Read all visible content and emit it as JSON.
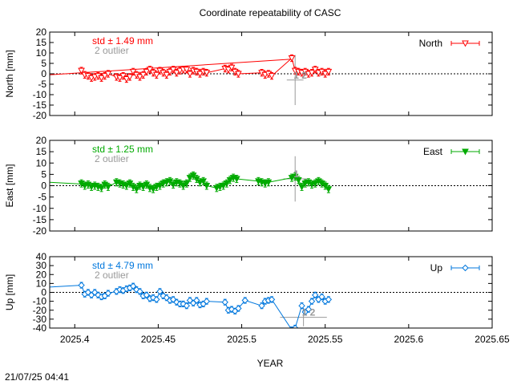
{
  "title": "Coordinate repeatability of CASC",
  "xlabel": "YEAR",
  "timestamp": "21/07/25 04:41",
  "x_ticks": [
    "2025.4",
    "2025.45",
    "2025.5",
    "2025.55",
    "2025.6",
    "2025.65"
  ],
  "chart_data": [
    {
      "type": "line",
      "component": "North",
      "ylabel": "North [mm]",
      "color": "#ff0000",
      "marker": "triangle-down-open",
      "legend": "North",
      "std_label": "std ± 1.49 mm",
      "outlier_label": "2 outlier",
      "outlier_marks": [
        "1",
        "2"
      ],
      "xlim": [
        2025.385,
        2025.65
      ],
      "ylim": [
        -20,
        20
      ],
      "y_ticks": [
        "20",
        "15",
        "10",
        "5",
        "0",
        "-5",
        "-10",
        "-15",
        "-20"
      ],
      "trend": [
        [
          2025.385,
          -0.5
        ],
        [
          2025.53,
          7
        ]
      ],
      "x": [
        2025.404,
        2025.406,
        2025.408,
        2025.41,
        2025.412,
        2025.414,
        2025.416,
        2025.418,
        2025.42,
        2025.425,
        2025.427,
        2025.429,
        2025.431,
        2025.433,
        2025.435,
        2025.437,
        2025.439,
        2025.441,
        2025.443,
        2025.445,
        2025.447,
        2025.449,
        2025.451,
        2025.453,
        2025.455,
        2025.457,
        2025.459,
        2025.461,
        2025.463,
        2025.465,
        2025.467,
        2025.469,
        2025.471,
        2025.473,
        2025.475,
        2025.477,
        2025.479,
        2025.49,
        2025.492,
        2025.494,
        2025.496,
        2025.498,
        2025.512,
        2025.514,
        2025.516,
        2025.518,
        2025.53,
        2025.532,
        2025.534,
        2025.536,
        2025.538,
        2025.54,
        2025.542,
        2025.544,
        2025.546,
        2025.548,
        2025.55,
        2025.552
      ],
      "y": [
        1.5,
        -0.5,
        -1.0,
        -2.0,
        -1.5,
        -1.0,
        -2.0,
        -1.0,
        0.0,
        -1.5,
        -2.0,
        -1.0,
        -2.5,
        -1.5,
        1.0,
        -0.5,
        -1.5,
        -0.5,
        1.0,
        2.0,
        0.5,
        -0.5,
        1.5,
        0.5,
        -0.5,
        1.0,
        2.0,
        0.5,
        1.5,
        2.0,
        2.0,
        0.0,
        1.5,
        1.0,
        0.0,
        1.0,
        0.5,
        2.5,
        2.0,
        3.0,
        1.0,
        0.0,
        0.5,
        -0.5,
        0.0,
        -1.0,
        7.5,
        1.5,
        1.0,
        0.5,
        1.0,
        0.0,
        0.5,
        2.0,
        0.5,
        1.0,
        0.0,
        1.0
      ],
      "outliers": [
        [
          2025.532,
          -3,
          12,
          5
        ]
      ]
    },
    {
      "type": "line",
      "component": "East",
      "ylabel": "East [mm]",
      "color": "#00aa00",
      "marker": "triangle-down-filled",
      "legend": "East",
      "std_label": "std ± 1.25 mm",
      "outlier_label": "2 outlier",
      "outlier_marks": [
        "1"
      ],
      "xlim": [
        2025.385,
        2025.65
      ],
      "ylim": [
        -20,
        20
      ],
      "y_ticks": [
        "20",
        "15",
        "10",
        "5",
        "0",
        "-5",
        "-10",
        "-15",
        "-20"
      ],
      "trend": [
        [
          2025.385,
          1.5
        ],
        [
          2025.41,
          0.5
        ]
      ],
      "x": [
        2025.404,
        2025.406,
        2025.408,
        2025.41,
        2025.412,
        2025.414,
        2025.416,
        2025.418,
        2025.42,
        2025.425,
        2025.427,
        2025.429,
        2025.431,
        2025.433,
        2025.435,
        2025.437,
        2025.439,
        2025.441,
        2025.443,
        2025.445,
        2025.447,
        2025.449,
        2025.451,
        2025.453,
        2025.455,
        2025.457,
        2025.459,
        2025.461,
        2025.463,
        2025.465,
        2025.467,
        2025.469,
        2025.471,
        2025.473,
        2025.475,
        2025.477,
        2025.479,
        2025.485,
        2025.487,
        2025.489,
        2025.491,
        2025.493,
        2025.495,
        2025.497,
        2025.51,
        2025.512,
        2025.514,
        2025.516,
        2025.53,
        2025.532,
        2025.534,
        2025.536,
        2025.538,
        2025.54,
        2025.542,
        2025.544,
        2025.546,
        2025.548,
        2025.55,
        2025.552
      ],
      "y": [
        1.0,
        0.0,
        0.5,
        -0.5,
        0.0,
        -0.5,
        -1.0,
        0.5,
        -0.5,
        1.5,
        1.0,
        0.5,
        0.0,
        1.0,
        -0.5,
        -1.5,
        0.0,
        -0.5,
        0.5,
        -1.0,
        -1.5,
        -0.5,
        0.0,
        1.0,
        1.5,
        2.0,
        0.5,
        1.5,
        1.0,
        0.0,
        1.0,
        3.5,
        4.5,
        3.0,
        1.5,
        2.0,
        0.0,
        -1.0,
        -0.5,
        0.0,
        1.0,
        2.5,
        3.5,
        3.0,
        2.0,
        1.5,
        1.0,
        1.5,
        3.5,
        4.0,
        2.5,
        -0.5,
        1.0,
        1.5,
        0.5,
        1.0,
        2.0,
        1.0,
        0.0,
        -1.5
      ],
      "outliers": [
        [
          2025.532,
          3,
          10,
          7
        ]
      ]
    },
    {
      "type": "line",
      "component": "Up",
      "ylabel": "Up [mm]",
      "color": "#0077dd",
      "marker": "diamond-open",
      "legend": "Up",
      "std_label": "std ± 4.79 mm",
      "outlier_label": "2 outlier",
      "outlier_marks": [
        "1",
        "2"
      ],
      "xlim": [
        2025.385,
        2025.65
      ],
      "ylim": [
        -40,
        40
      ],
      "y_ticks": [
        "40",
        "30",
        "20",
        "10",
        "0",
        "-10",
        "-20",
        "-30",
        "-40"
      ],
      "trend": [
        [
          2025.385,
          6
        ],
        [
          2025.404,
          8
        ]
      ],
      "x": [
        2025.404,
        2025.406,
        2025.408,
        2025.41,
        2025.412,
        2025.414,
        2025.416,
        2025.418,
        2025.42,
        2025.425,
        2025.427,
        2025.429,
        2025.431,
        2025.433,
        2025.435,
        2025.437,
        2025.439,
        2025.441,
        2025.443,
        2025.445,
        2025.447,
        2025.449,
        2025.451,
        2025.453,
        2025.455,
        2025.457,
        2025.459,
        2025.461,
        2025.463,
        2025.465,
        2025.467,
        2025.469,
        2025.471,
        2025.473,
        2025.475,
        2025.477,
        2025.479,
        2025.49,
        2025.492,
        2025.494,
        2025.496,
        2025.498,
        2025.502,
        2025.512,
        2025.514,
        2025.516,
        2025.518,
        2025.53,
        2025.532,
        2025.536,
        2025.538,
        2025.54,
        2025.542,
        2025.544,
        2025.546,
        2025.548,
        2025.55,
        2025.552
      ],
      "y": [
        8,
        -2,
        0,
        -3,
        0,
        -3,
        -5,
        -4,
        -1,
        1,
        3,
        2,
        4,
        5,
        7,
        3,
        1,
        -4,
        -3,
        -7,
        -6,
        -8,
        1,
        -4,
        -6,
        -9,
        -8,
        -11,
        -13,
        -13,
        -15,
        -9,
        -12,
        -9,
        -14,
        -13,
        -10,
        -11,
        -20,
        -19,
        -21,
        -18,
        -9,
        -15,
        -10,
        -9,
        -8,
        -42,
        -40,
        -15,
        -22,
        -19,
        -10,
        -3,
        -8,
        -5,
        -10,
        -8
      ],
      "outliers": [
        [
          2025.537,
          -28,
          10,
          14
        ]
      ]
    }
  ]
}
